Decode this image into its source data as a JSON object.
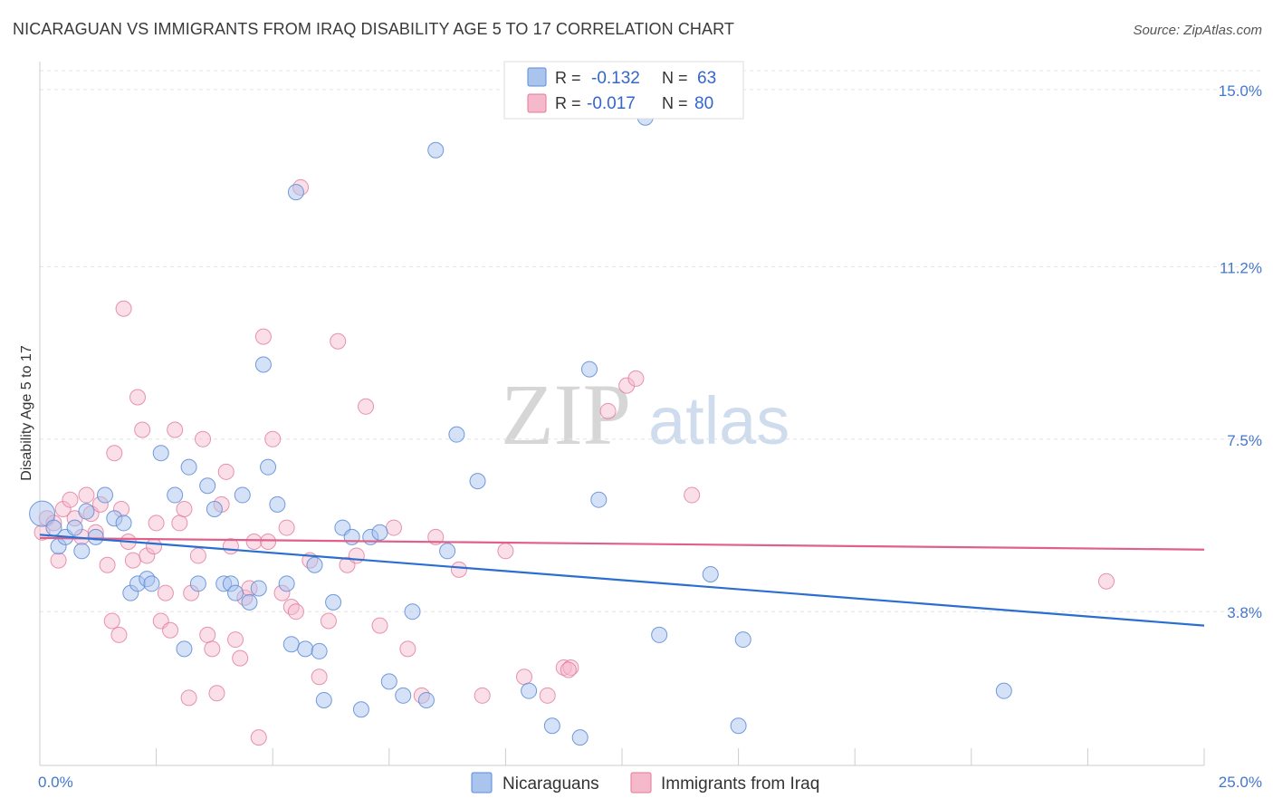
{
  "title": "NICARAGUAN VS IMMIGRANTS FROM IRAQ DISABILITY AGE 5 TO 17 CORRELATION CHART",
  "source": "Source: ZipAtlas.com",
  "watermark": {
    "zip": "ZIP",
    "atlas": "atlas"
  },
  "legend": {
    "rows": [
      {
        "r_label": "R = ",
        "r_value": "-0.132",
        "n_label": "N = ",
        "n_value": "63"
      },
      {
        "r_label": "R = ",
        "r_value": "-0.017",
        "n_label": "N = ",
        "n_value": "80"
      }
    ]
  },
  "colors": {
    "nicaraguans_fill": "#aac4ee",
    "nicaraguans_stroke": "#5a8bd6",
    "nicaraguans_line": "#2a6fd0",
    "iraq_fill": "#f6b9cb",
    "iraq_stroke": "#e07a9a",
    "iraq_line": "#e0608a",
    "tick_text": "#4477cc"
  },
  "chart_data": {
    "type": "scatter",
    "title": "NICARAGUAN VS IMMIGRANTS FROM IRAQ DISABILITY AGE 5 TO 17 CORRELATION CHART",
    "xlabel": "",
    "ylabel": "Disability Age 5 to 17",
    "xlim": [
      0,
      25
    ],
    "ylim": [
      0.5,
      15.6
    ],
    "x_tick_labels": [
      "0.0%",
      "25.0%"
    ],
    "y_ticks": [
      {
        "value": 3.8,
        "label": "3.8%"
      },
      {
        "value": 7.5,
        "label": "7.5%"
      },
      {
        "value": 11.2,
        "label": "11.2%"
      },
      {
        "value": 15.0,
        "label": "15.0%"
      }
    ],
    "legend_position": "top-center",
    "grid": "horizontal-dashed",
    "series": [
      {
        "name": "Nicaraguans",
        "trend": [
          [
            0,
            5.45
          ],
          [
            25,
            3.5
          ]
        ],
        "points": [
          [
            0.05,
            5.9
          ],
          [
            0.3,
            5.6
          ],
          [
            0.4,
            5.2
          ],
          [
            0.55,
            5.4
          ],
          [
            0.75,
            5.6
          ],
          [
            0.9,
            5.1
          ],
          [
            1.0,
            5.95
          ],
          [
            1.2,
            5.4
          ],
          [
            1.4,
            6.3
          ],
          [
            1.6,
            5.8
          ],
          [
            1.8,
            5.7
          ],
          [
            1.95,
            4.2
          ],
          [
            2.1,
            4.4
          ],
          [
            2.3,
            4.5
          ],
          [
            2.4,
            4.4
          ],
          [
            2.6,
            7.2
          ],
          [
            2.9,
            6.3
          ],
          [
            3.1,
            3.0
          ],
          [
            3.2,
            6.9
          ],
          [
            3.4,
            4.4
          ],
          [
            3.6,
            6.5
          ],
          [
            3.75,
            6.0
          ],
          [
            3.95,
            4.4
          ],
          [
            4.1,
            4.4
          ],
          [
            4.2,
            4.2
          ],
          [
            4.35,
            6.3
          ],
          [
            4.5,
            4.0
          ],
          [
            4.7,
            4.3
          ],
          [
            4.8,
            9.1
          ],
          [
            4.9,
            6.9
          ],
          [
            5.1,
            6.1
          ],
          [
            5.3,
            4.4
          ],
          [
            5.4,
            3.1
          ],
          [
            5.5,
            12.8
          ],
          [
            5.7,
            3.0
          ],
          [
            5.9,
            4.8
          ],
          [
            6.0,
            2.95
          ],
          [
            6.1,
            1.9
          ],
          [
            6.3,
            4.0
          ],
          [
            6.5,
            5.6
          ],
          [
            6.7,
            5.4
          ],
          [
            6.9,
            1.7
          ],
          [
            7.1,
            5.4
          ],
          [
            7.3,
            5.5
          ],
          [
            7.5,
            2.3
          ],
          [
            7.8,
            2.0
          ],
          [
            8.0,
            3.8
          ],
          [
            8.3,
            1.9
          ],
          [
            8.5,
            13.7
          ],
          [
            8.75,
            5.1
          ],
          [
            8.95,
            7.6
          ],
          [
            9.4,
            6.6
          ],
          [
            10.5,
            2.1
          ],
          [
            11.0,
            1.35
          ],
          [
            11.6,
            1.1
          ],
          [
            11.8,
            9.0
          ],
          [
            12.0,
            6.2
          ],
          [
            13.3,
            3.3
          ],
          [
            14.4,
            4.6
          ],
          [
            15.0,
            1.35
          ],
          [
            15.1,
            3.2
          ],
          [
            20.7,
            2.1
          ],
          [
            13.0,
            14.4
          ]
        ]
      },
      {
        "name": "Immigrants from Iraq",
        "trend": [
          [
            0,
            5.38
          ],
          [
            25,
            5.13
          ]
        ],
        "points": [
          [
            0.05,
            5.5
          ],
          [
            0.15,
            5.8
          ],
          [
            0.3,
            5.7
          ],
          [
            0.4,
            4.9
          ],
          [
            0.5,
            6.0
          ],
          [
            0.65,
            6.2
          ],
          [
            0.75,
            5.8
          ],
          [
            0.9,
            5.4
          ],
          [
            1.0,
            6.3
          ],
          [
            1.1,
            5.9
          ],
          [
            1.2,
            5.5
          ],
          [
            1.3,
            6.1
          ],
          [
            1.45,
            4.8
          ],
          [
            1.55,
            3.6
          ],
          [
            1.6,
            7.2
          ],
          [
            1.7,
            3.3
          ],
          [
            1.75,
            6.0
          ],
          [
            1.8,
            10.3
          ],
          [
            1.9,
            5.3
          ],
          [
            2.0,
            4.9
          ],
          [
            2.1,
            8.4
          ],
          [
            2.2,
            7.7
          ],
          [
            2.3,
            5.0
          ],
          [
            2.45,
            5.2
          ],
          [
            2.5,
            5.7
          ],
          [
            2.6,
            3.6
          ],
          [
            2.7,
            4.2
          ],
          [
            2.8,
            3.4
          ],
          [
            2.9,
            7.7
          ],
          [
            3.0,
            5.7
          ],
          [
            3.1,
            6.0
          ],
          [
            3.2,
            1.95
          ],
          [
            3.25,
            4.2
          ],
          [
            3.4,
            5.0
          ],
          [
            3.5,
            7.5
          ],
          [
            3.6,
            3.3
          ],
          [
            3.7,
            3.0
          ],
          [
            3.8,
            2.05
          ],
          [
            3.9,
            6.1
          ],
          [
            4.0,
            6.8
          ],
          [
            4.1,
            5.2
          ],
          [
            4.2,
            3.2
          ],
          [
            4.3,
            2.8
          ],
          [
            4.4,
            4.1
          ],
          [
            4.5,
            4.3
          ],
          [
            4.6,
            5.3
          ],
          [
            4.7,
            1.1
          ],
          [
            4.8,
            9.7
          ],
          [
            4.9,
            5.3
          ],
          [
            5.0,
            7.5
          ],
          [
            5.2,
            4.2
          ],
          [
            5.3,
            5.6
          ],
          [
            5.4,
            3.9
          ],
          [
            5.5,
            3.8
          ],
          [
            5.6,
            12.9
          ],
          [
            5.8,
            4.9
          ],
          [
            6.0,
            2.4
          ],
          [
            6.2,
            3.6
          ],
          [
            6.4,
            9.6
          ],
          [
            6.6,
            4.8
          ],
          [
            6.8,
            5.0
          ],
          [
            7.0,
            8.2
          ],
          [
            7.3,
            3.5
          ],
          [
            7.6,
            5.6
          ],
          [
            7.9,
            3.0
          ],
          [
            8.2,
            2.0
          ],
          [
            8.5,
            5.4
          ],
          [
            9.0,
            4.7
          ],
          [
            9.5,
            2.0
          ],
          [
            10.0,
            5.1
          ],
          [
            10.4,
            2.4
          ],
          [
            10.9,
            2.0
          ],
          [
            11.25,
            2.6
          ],
          [
            11.4,
            2.6
          ],
          [
            12.2,
            8.1
          ],
          [
            12.6,
            8.65
          ],
          [
            12.8,
            8.8
          ],
          [
            14.0,
            6.3
          ],
          [
            22.9,
            4.45
          ],
          [
            11.35,
            2.55
          ]
        ]
      }
    ]
  }
}
